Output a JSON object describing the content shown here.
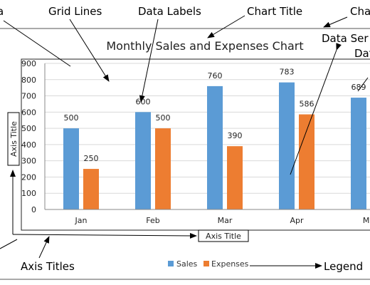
{
  "chart_data": {
    "type": "bar",
    "title": "Monthly Sales and Expenses Chart",
    "categories": [
      "Jan",
      "Feb",
      "Mar",
      "Apr",
      "May"
    ],
    "series": [
      {
        "name": "Sales",
        "values": [
          500,
          600,
          760,
          783,
          689
        ],
        "color": "#5B9BD5"
      },
      {
        "name": "Expenses",
        "values": [
          250,
          500,
          390,
          586,
          null
        ],
        "color": "#ED7D31"
      }
    ],
    "data_labels": {
      "Sales": [
        "500",
        "600",
        "760",
        "783",
        "689"
      ],
      "Expenses": [
        "250",
        "500",
        "390",
        "586",
        ""
      ]
    },
    "y_ticks": [
      "0",
      "100",
      "200",
      "300",
      "400",
      "500",
      "600",
      "700",
      "800",
      "900"
    ],
    "x_tick_labels": [
      "Jan",
      "Feb",
      "Mar",
      "Apr",
      "Ma"
    ],
    "ylim": [
      0,
      900
    ],
    "ylabel": "Axis Title",
    "xlabel": "Axis Title",
    "grid": true,
    "legend_position": "bottom"
  },
  "annotations": {
    "grid_lines": "Grid Lines",
    "data_labels": "Data Labels",
    "chart_title": "Chart Title",
    "chart_area": "Cha",
    "data_series": "Data Ser",
    "data_series_line2": "Dat",
    "axis_titles": "Axis Titles",
    "legend": "Legend",
    "plot_area": "a"
  }
}
